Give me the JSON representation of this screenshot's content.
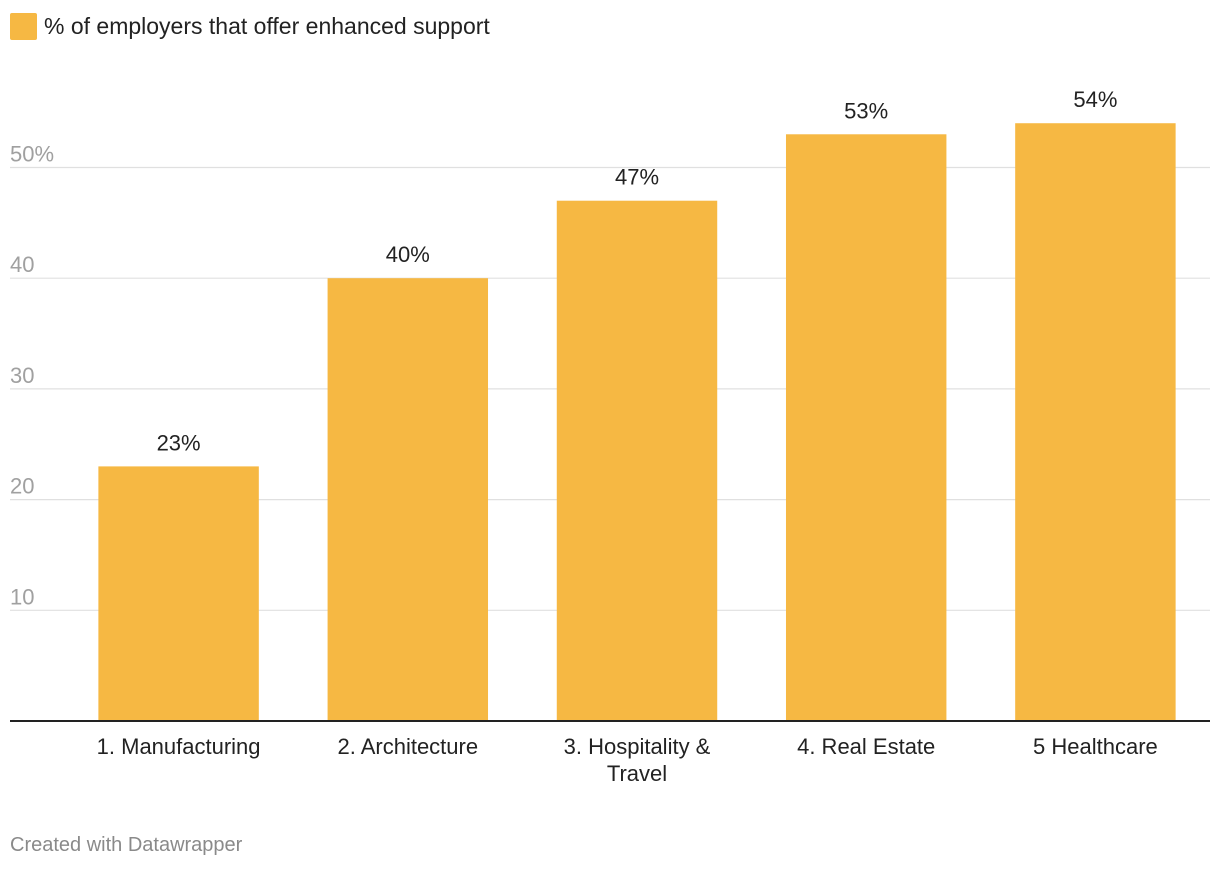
{
  "colors": {
    "bar": "#f6b843",
    "grid": "#e0e0e0",
    "baseline": "#222222",
    "tick_text": "#a0a0a0"
  },
  "chart_data": {
    "type": "bar",
    "title": "",
    "xlabel": "",
    "ylabel": "",
    "legend": {
      "placement": "top-left",
      "entries": [
        "% of employers that offer enhanced support"
      ]
    },
    "categories": [
      "1. Manufacturing",
      "2. Architecture",
      "3. Hospitality & Travel",
      "4. Real Estate",
      "5 Healthcare"
    ],
    "series": [
      {
        "name": "% of employers that offer enhanced support",
        "values": [
          23,
          40,
          47,
          53,
          54
        ]
      }
    ],
    "data_labels": [
      "23%",
      "40%",
      "47%",
      "53%",
      "54%"
    ],
    "ylim": [
      0,
      60
    ],
    "y_ticks": [
      {
        "value": 10,
        "label": "10"
      },
      {
        "value": 20,
        "label": "20"
      },
      {
        "value": 30,
        "label": "30"
      },
      {
        "value": 40,
        "label": "40"
      },
      {
        "value": 50,
        "label": "50%"
      }
    ],
    "grid": true
  },
  "footer": {
    "credit": "Created with Datawrapper"
  }
}
